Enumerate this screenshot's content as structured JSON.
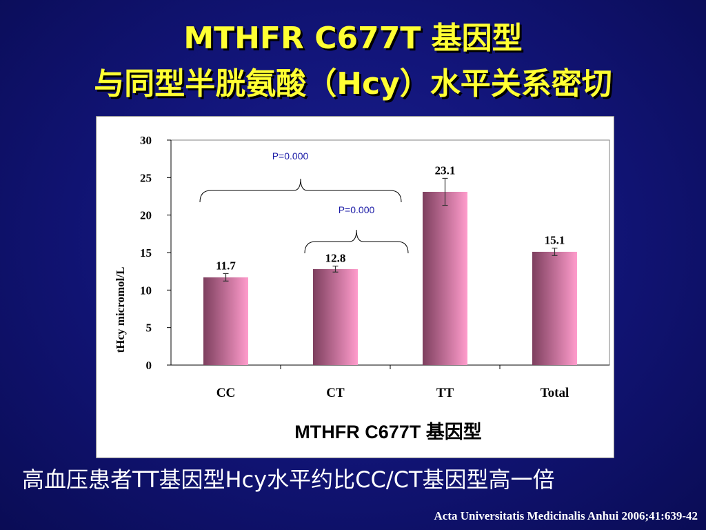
{
  "slide": {
    "title_line1": "MTHFR C677T 基因型",
    "title_line2": "与同型半胱氨酸（Hcy）水平关系密切",
    "conclusion": "高血压患者TT基因型Hcy水平约比CC/CT基因型高一倍",
    "citation": "Acta Universitatis Medicinalis Anhui 2006;41:639-42"
  },
  "colors": {
    "background": "#12157a",
    "title": "#ffff33",
    "bar_dark": "#7d3f5e",
    "bar_light": "#ff9ccc",
    "annotation": "#1a1aa6"
  },
  "chart_data": {
    "type": "bar",
    "categories": [
      "CC",
      "CT",
      "TT",
      "Total"
    ],
    "values": [
      11.7,
      12.8,
      23.1,
      15.1
    ],
    "value_labels": [
      "11.7",
      "12.8",
      "23.1",
      "15.1"
    ],
    "error_bars": [
      0.5,
      0.4,
      1.8,
      0.5
    ],
    "ylim": [
      0,
      30
    ],
    "yticks": [
      "0",
      "5",
      "10",
      "15",
      "20",
      "25",
      "30"
    ],
    "ylabel": "tHcy micromol/L",
    "xlabel": "MTHFR C677T 基因型",
    "grid": false,
    "annotations": [
      {
        "text": "P=0.000",
        "from_category": "CC",
        "to_category": "CT"
      },
      {
        "text": "P=0.000",
        "from_category": "CT",
        "to_category": "CT"
      }
    ]
  }
}
